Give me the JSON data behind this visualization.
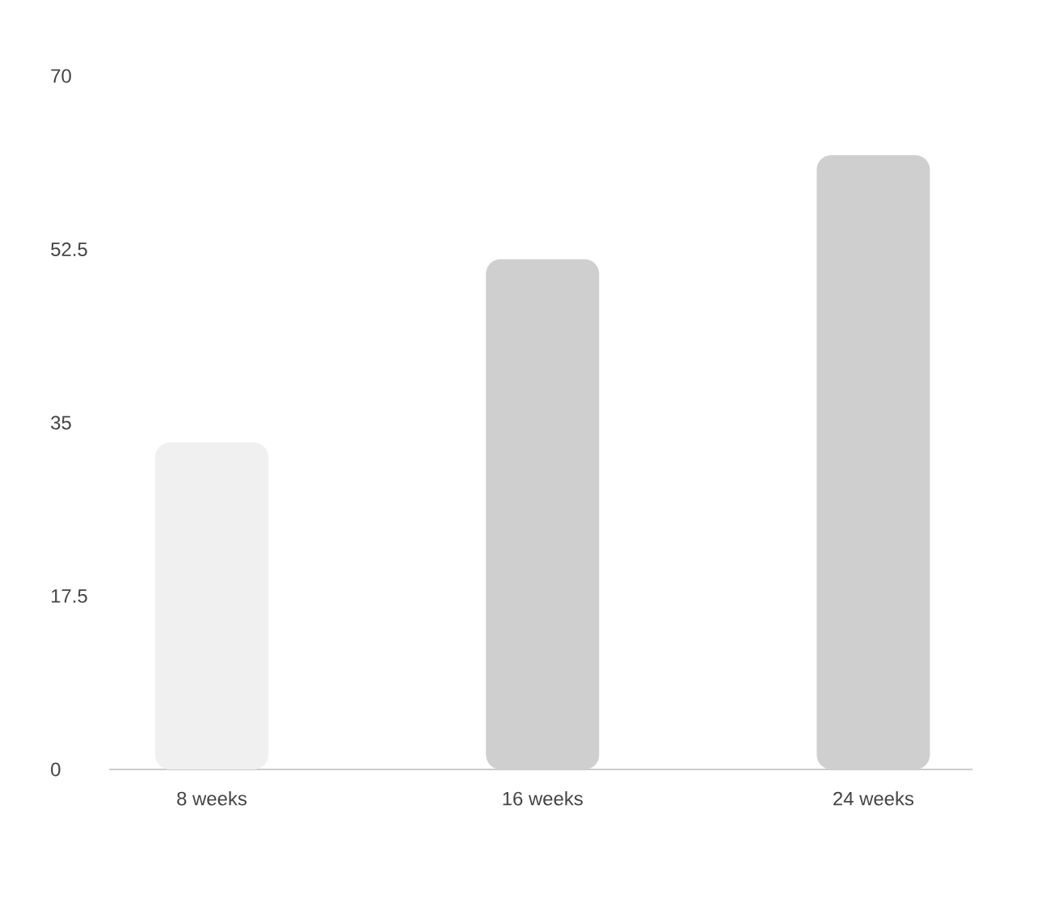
{
  "chart_data": {
    "type": "bar",
    "categories": [
      "8 weeks",
      "16 weeks",
      "24 weeks"
    ],
    "values": [
      33,
      51.5,
      62
    ],
    "colors": [
      "#f0f0f0",
      "#cfcfcf",
      "#cfcfcf"
    ],
    "ylim": [
      0,
      70
    ],
    "yticks": [
      0,
      17.5,
      35,
      52.5,
      70
    ]
  }
}
